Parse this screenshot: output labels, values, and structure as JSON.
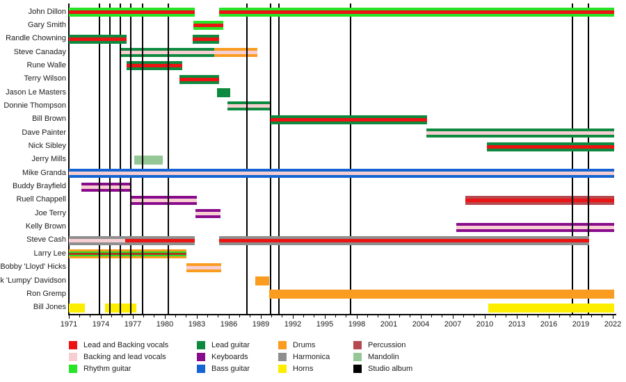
{
  "page": {
    "background": "#ffffff"
  },
  "palette": {
    "lead_vocals": "#ec1313",
    "backing_vocals": "#f7cfd2",
    "rhythm_guitar": "#27e427",
    "lead_guitar": "#0e8a40",
    "keyboards": "#880b8c",
    "bass_guitar": "#1464d2",
    "drums": "#f99c1f",
    "harmonica": "#8e8e8e",
    "horns": "#fdee00",
    "percussion": "#b5494f",
    "mandolin": "#94c795",
    "studio_album": "#000000",
    "lead_vocals_dark": "#b43421"
  },
  "chart_data": {
    "type": "bar",
    "subtype": "gantt-band-membership-timeline",
    "title": "",
    "xlabel": "",
    "ylabel": "",
    "xlim": [
      1971,
      2022
    ],
    "grid": false,
    "x_major_ticks": [
      1971,
      1974,
      1977,
      1980,
      1983,
      1986,
      1989,
      1992,
      1995,
      1998,
      2001,
      2004,
      2007,
      2010,
      2013,
      2016,
      2019,
      2022
    ],
    "x_minor_tick_step": 1,
    "album_line_years": [
      1973.9,
      1974.85,
      1975.8,
      1976.8,
      1977.9,
      1980.3,
      1987.7,
      1989.9,
      1990.7,
      1997.4,
      2018.2,
      2019.7
    ],
    "members": [
      {
        "name": "John Dillon",
        "bars": [
          {
            "start": 1971.0,
            "end": 1982.8,
            "outer": "rhythm_guitar",
            "center": "lead_vocals"
          },
          {
            "start": 1985.1,
            "end": 2022.1,
            "outer": "rhythm_guitar",
            "center": "lead_vocals"
          }
        ]
      },
      {
        "name": "Gary Smith",
        "bars": [
          {
            "start": 1982.7,
            "end": 1985.5,
            "outer": "rhythm_guitar",
            "center": "lead_vocals"
          }
        ]
      },
      {
        "name": "Randle Chowning",
        "bars": [
          {
            "start": 1971.0,
            "end": 1976.4,
            "outer": "lead_guitar",
            "center": "lead_vocals"
          },
          {
            "start": 1982.6,
            "end": 1985.1,
            "outer": "lead_guitar",
            "center": "lead_vocals"
          }
        ]
      },
      {
        "name": "Steve Canaday",
        "bars": [
          {
            "start": 1975.9,
            "end": 1984.6,
            "outer": "lead_guitar",
            "center": "backing_vocals",
            "behind": true
          },
          {
            "start": 1984.6,
            "end": 1988.7,
            "outer": "drums",
            "center": "backing_vocals",
            "behind": true
          }
        ]
      },
      {
        "name": "Rune Walle",
        "bars": [
          {
            "start": 1976.4,
            "end": 1981.6,
            "outer": "lead_guitar",
            "center": "lead_vocals",
            "behind": true
          }
        ]
      },
      {
        "name": "Terry Wilson",
        "bars": [
          {
            "start": 1981.4,
            "end": 1985.1,
            "outer": "lead_guitar",
            "center": "lead_vocals"
          }
        ]
      },
      {
        "name": "Jason Le Masters",
        "bars": [
          {
            "start": 1984.9,
            "end": 1986.1,
            "outer": "lead_guitar",
            "center": null
          }
        ]
      },
      {
        "name": "Donnie Thompson",
        "bars": [
          {
            "start": 1985.9,
            "end": 1989.9,
            "outer": "lead_guitar",
            "center": "backing_vocals",
            "behind": true
          }
        ]
      },
      {
        "name": "Bill Brown",
        "bars": [
          {
            "start": 1989.9,
            "end": 2004.6,
            "outer": "lead_guitar",
            "center": "lead_vocals"
          }
        ]
      },
      {
        "name": "Dave Painter",
        "bars": [
          {
            "start": 2004.5,
            "end": 2022.1,
            "outer": "lead_guitar",
            "center": "backing_vocals"
          }
        ]
      },
      {
        "name": "Nick Sibley",
        "bars": [
          {
            "start": 2010.2,
            "end": 2022.1,
            "outer": "lead_guitar",
            "center": "lead_vocals"
          }
        ]
      },
      {
        "name": "Jerry Mills",
        "bars": [
          {
            "start": 1977.1,
            "end": 1979.8,
            "outer": "mandolin",
            "center": null,
            "behind": true
          }
        ]
      },
      {
        "name": "Mike Granda",
        "bars": [
          {
            "start": 1971.0,
            "end": 2022.1,
            "outer": "bass_guitar",
            "center": "backing_vocals"
          }
        ]
      },
      {
        "name": "Buddy Brayfield",
        "bars": [
          {
            "start": 1972.2,
            "end": 1976.9,
            "outer": "keyboards",
            "center": "backing_vocals",
            "behind": true
          }
        ]
      },
      {
        "name": "Ruell Chappell",
        "bars": [
          {
            "start": 1976.8,
            "end": 1983.0,
            "outer": "keyboards",
            "center": "backing_vocals",
            "behind": true
          },
          {
            "start": 2008.2,
            "end": 2022.1,
            "outer": "percussion",
            "center": "lead_vocals",
            "behind": true
          }
        ]
      },
      {
        "name": "Joe Terry",
        "bars": [
          {
            "start": 1982.9,
            "end": 1985.2,
            "outer": "keyboards",
            "center": "backing_vocals",
            "behind": true
          }
        ]
      },
      {
        "name": "Kelly Brown",
        "bars": [
          {
            "start": 2007.3,
            "end": 2022.1,
            "outer": "keyboards",
            "center": "backing_vocals",
            "behind": true
          }
        ]
      },
      {
        "name": "Steve Cash",
        "bars": [
          {
            "start": 1971.0,
            "end": 1982.8,
            "outer": "harmonica",
            "center_split": [
              {
                "role": "backing_vocals",
                "to": 1976.3
              },
              {
                "role": "lead_vocals",
                "to": 1982.8
              }
            ]
          },
          {
            "start": 1985.1,
            "end": 2019.8,
            "outer": "harmonica",
            "center": "lead_vocals"
          }
        ]
      },
      {
        "name": "Larry Lee",
        "bars": [
          {
            "start": 1971.0,
            "end": 1982.0,
            "outer": "drums",
            "mid": "rhythm_guitar",
            "center": "lead_vocals_dark",
            "behind": true
          }
        ]
      },
      {
        "name": "Bobby 'Lloyd' Hicks",
        "bars": [
          {
            "start": 1982.0,
            "end": 1985.3,
            "outer": "drums",
            "center": "backing_vocals",
            "behind": true
          }
        ]
      },
      {
        "name": "ck 'Lumpy' Davidson",
        "bars": [
          {
            "start": 1988.5,
            "end": 1989.8,
            "outer": "drums",
            "center": null
          }
        ]
      },
      {
        "name": "Ron Gremp",
        "bars": [
          {
            "start": 1989.8,
            "end": 2022.1,
            "outer": "drums",
            "center": null
          }
        ]
      },
      {
        "name": "Bill Jones",
        "bars": [
          {
            "start": 1971.0,
            "end": 1972.5,
            "outer": "horns",
            "center": null,
            "behind": true
          },
          {
            "start": 1974.4,
            "end": 1977.3,
            "outer": "horns",
            "center": null,
            "behind": true
          },
          {
            "start": 2010.3,
            "end": 2022.1,
            "outer": "horns",
            "center": null
          }
        ]
      }
    ],
    "legend_position": "bottom",
    "legend_columns": [
      [
        {
          "label": "Lead and Backing vocals",
          "role": "lead_vocals"
        },
        {
          "label": "Backing and lead vocals",
          "role": "backing_vocals"
        },
        {
          "label": "Rhythm guitar",
          "role": "rhythm_guitar"
        }
      ],
      [
        {
          "label": "Lead guitar",
          "role": "lead_guitar"
        },
        {
          "label": "Keyboards",
          "role": "keyboards"
        },
        {
          "label": "Bass guitar",
          "role": "bass_guitar"
        }
      ],
      [
        {
          "label": "Drums",
          "role": "drums"
        },
        {
          "label": "Harmonica",
          "role": "harmonica"
        },
        {
          "label": "Horns",
          "role": "horns"
        }
      ],
      [
        {
          "label": "Percussion",
          "role": "percussion"
        },
        {
          "label": "Mandolin",
          "role": "mandolin"
        },
        {
          "label": "Studio album",
          "role": "studio_album"
        }
      ]
    ]
  }
}
